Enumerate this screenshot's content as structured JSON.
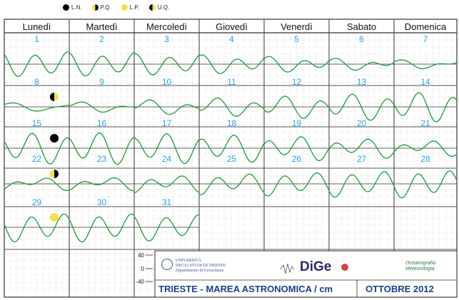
{
  "legend": [
    {
      "label": "L.N.",
      "icon": "new-moon-icon",
      "cls": "m-ln"
    },
    {
      "label": "P.Q.",
      "icon": "first-quarter-icon",
      "cls": "m-pq"
    },
    {
      "label": "L.P.",
      "icon": "full-moon-icon",
      "cls": "m-lp"
    },
    {
      "label": "U.Q.",
      "icon": "last-quarter-icon",
      "cls": "m-uq"
    }
  ],
  "days": [
    "Lunedì",
    "Martedì",
    "Mercoledì",
    "Giovedì",
    "Venerdì",
    "Sabato",
    "Domenica"
  ],
  "scale": {
    "top": "40",
    "mid": "0",
    "bottom": "-40"
  },
  "footer": {
    "university_line1": "UNIVERSITÀ",
    "university_line2": "DEGLI STUDI DI TRIESTE",
    "university_line3": "Dipartimento di Geoscienze",
    "dige": "DiGe",
    "oceano_line1": "Oceanografia",
    "oceano_line2": "Meteorologia",
    "title": "TRIESTE - MAREA ASTRONOMICA / cm",
    "month": "OTTOBRE  2012"
  },
  "colors": {
    "curve": "#1f9a3a",
    "day_number": "#2aa4e0",
    "grid": "#b9b9b9",
    "title": "#1c3d8f"
  },
  "chart_data": {
    "type": "line",
    "title": "TRIESTE - MAREA ASTRONOMICA / cm",
    "subtitle": "OTTOBRE  2012",
    "ylim": [
      -40,
      40
    ],
    "ylabel": "cm",
    "moon_phases": [
      {
        "day": 8,
        "phase": "U.Q."
      },
      {
        "day": 15,
        "phase": "L.N."
      },
      {
        "day": 22,
        "phase": "P.Q."
      },
      {
        "day": 29,
        "phase": "L.P."
      }
    ],
    "day_numbers": [
      1,
      2,
      3,
      4,
      5,
      6,
      7,
      8,
      9,
      10,
      11,
      12,
      13,
      14,
      15,
      16,
      17,
      18,
      19,
      20,
      21,
      22,
      23,
      24,
      25,
      26,
      27,
      28,
      29,
      30,
      31
    ],
    "days": [
      {
        "day": 1,
        "semi": 27,
        "diur": 6
      },
      {
        "day": 2,
        "semi": 25,
        "diur": 7
      },
      {
        "day": 3,
        "semi": 22,
        "diur": 7
      },
      {
        "day": 4,
        "semi": 18,
        "diur": 8
      },
      {
        "day": 5,
        "semi": 14,
        "diur": 8
      },
      {
        "day": 6,
        "semi": 9,
        "diur": 8
      },
      {
        "day": 7,
        "semi": 5,
        "diur": 8
      },
      {
        "day": 8,
        "semi": 3,
        "diur": 9
      },
      {
        "day": 9,
        "semi": 6,
        "diur": 9
      },
      {
        "day": 10,
        "semi": 11,
        "diur": 10
      },
      {
        "day": 11,
        "semi": 16,
        "diur": 10
      },
      {
        "day": 12,
        "semi": 21,
        "diur": 10
      },
      {
        "day": 13,
        "semi": 26,
        "diur": 10
      },
      {
        "day": 14,
        "semi": 30,
        "diur": 10
      },
      {
        "day": 15,
        "semi": 32,
        "diur": 10
      },
      {
        "day": 16,
        "semi": 33,
        "diur": 10
      },
      {
        "day": 17,
        "semi": 31,
        "diur": 10
      },
      {
        "day": 18,
        "semi": 28,
        "diur": 9
      },
      {
        "day": 19,
        "semi": 24,
        "diur": 9
      },
      {
        "day": 20,
        "semi": 18,
        "diur": 9
      },
      {
        "day": 21,
        "semi": 13,
        "diur": 9
      },
      {
        "day": 22,
        "semi": 9,
        "diur": 9
      },
      {
        "day": 23,
        "semi": 10,
        "diur": 9
      },
      {
        "day": 24,
        "semi": 15,
        "diur": 9
      },
      {
        "day": 25,
        "semi": 20,
        "diur": 9
      },
      {
        "day": 26,
        "semi": 24,
        "diur": 8
      },
      {
        "day": 27,
        "semi": 27,
        "diur": 8
      },
      {
        "day": 28,
        "semi": 29,
        "diur": 8
      },
      {
        "day": 29,
        "semi": 30,
        "diur": 8
      },
      {
        "day": 30,
        "semi": 30,
        "diur": 8
      },
      {
        "day": 31,
        "semi": 28,
        "diur": 8
      }
    ]
  }
}
